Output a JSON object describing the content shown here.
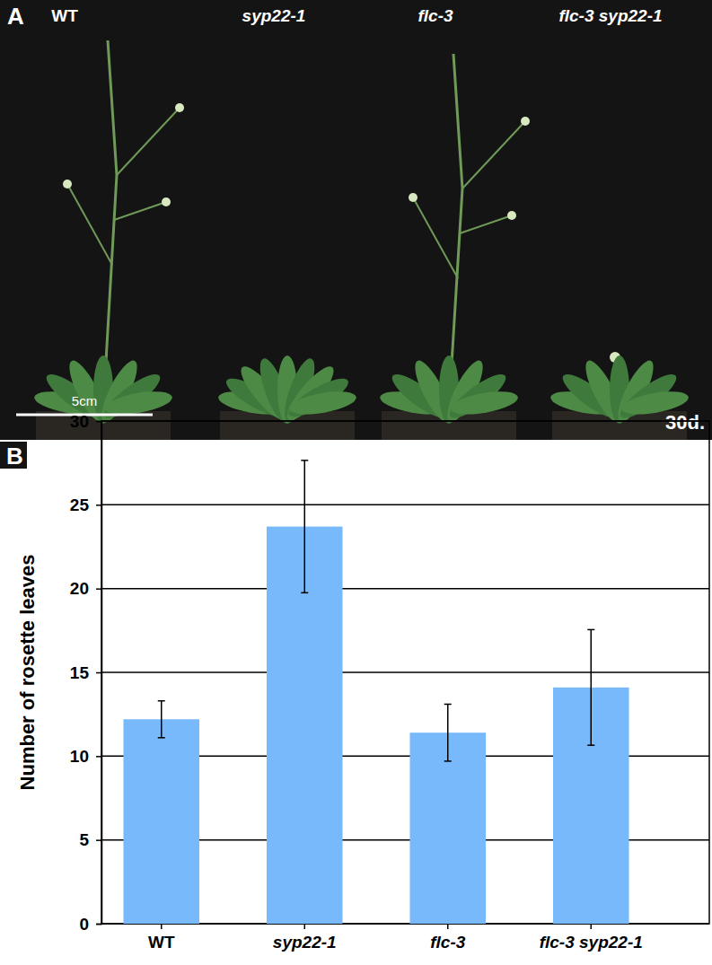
{
  "panel_a": {
    "label": "A",
    "genotypes": [
      "WT",
      "syp22-1",
      "flc-3",
      "flc-3 syp22-1"
    ],
    "scale_bar": "5cm",
    "age": "30d."
  },
  "chart_data": {
    "type": "bar",
    "panel_label": "B",
    "categories": [
      "WT",
      "syp22-1",
      "flc-3",
      "flc-3 syp22-1"
    ],
    "values": [
      12.2,
      23.7,
      11.4,
      14.1
    ],
    "errors": [
      1.1,
      3.95,
      1.7,
      3.45
    ],
    "color": "#77b9fb",
    "y_label": "Number of rosette leaves",
    "ylim": [
      0,
      30
    ],
    "yticks": [
      0,
      5,
      10,
      15,
      20,
      25,
      30
    ],
    "grid": true
  }
}
